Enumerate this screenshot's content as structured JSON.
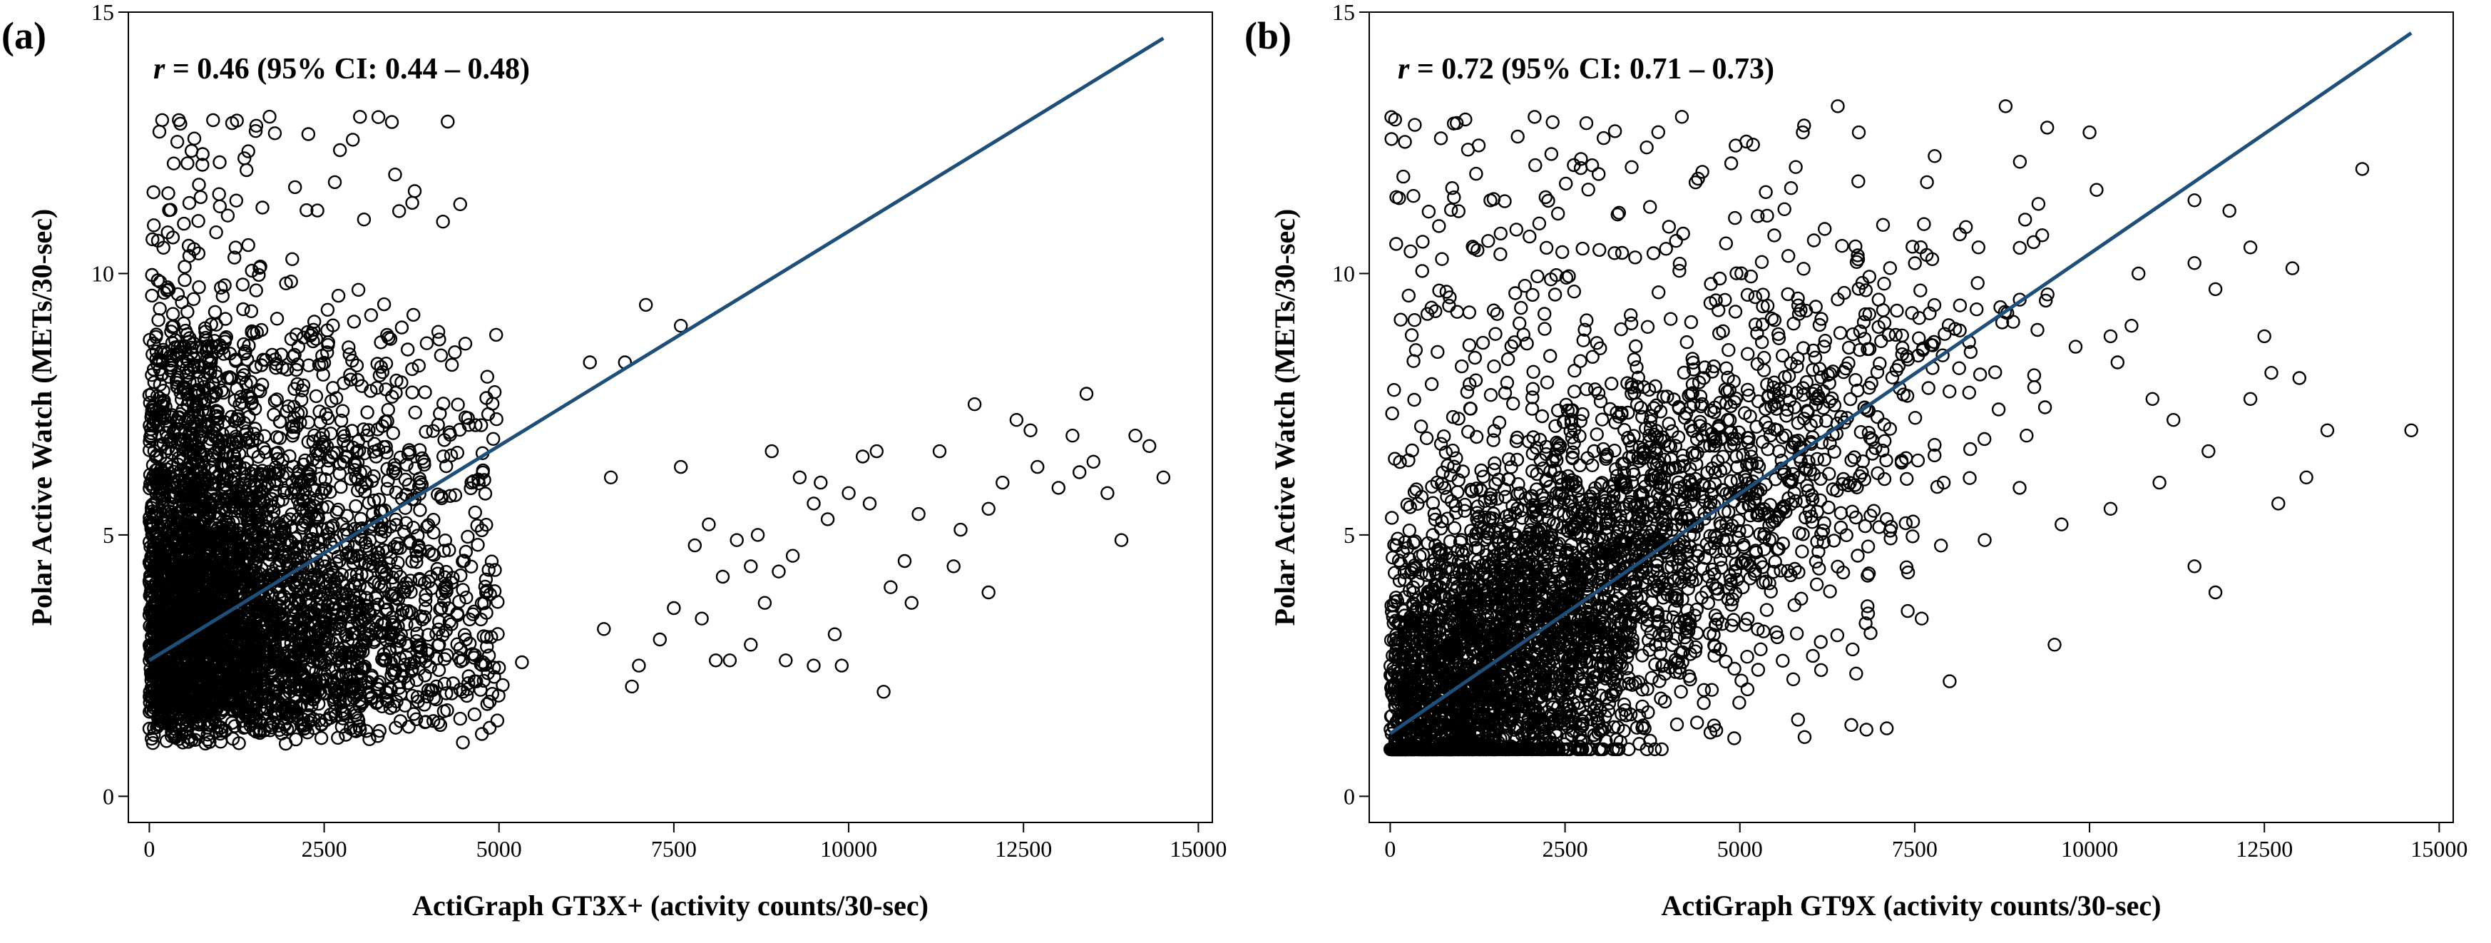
{
  "chart_data": [
    {
      "type": "scatter",
      "panel_label": "(a)",
      "annotation": {
        "r_symbol": "r",
        "text": " = 0.46 (95% CI: 0.44 – 0.48)"
      },
      "xlabel": "ActiGraph GT3X+ (activity counts/30-sec)",
      "ylabel": "Polar Active Watch (METs/30-sec)",
      "xlim": [
        -300,
        15200
      ],
      "ylim": [
        -0.5,
        15
      ],
      "xticks": [
        0,
        2500,
        5000,
        7500,
        10000,
        12500,
        15000
      ],
      "yticks": [
        0,
        5,
        10,
        15
      ],
      "fit_line": {
        "x": [
          0,
          14500
        ],
        "y": [
          2.6,
          14.5
        ]
      },
      "line_color": "#1f4e79",
      "outlier_points": [
        [
          14500,
          6.1
        ],
        [
          14300,
          6.7
        ],
        [
          14100,
          6.9
        ],
        [
          13900,
          4.9
        ],
        [
          13700,
          5.8
        ],
        [
          13500,
          6.4
        ],
        [
          13400,
          7.7
        ],
        [
          13200,
          6.9
        ],
        [
          13000,
          5.9
        ],
        [
          12700,
          6.3
        ],
        [
          12400,
          7.2
        ],
        [
          12000,
          5.5
        ],
        [
          12000,
          3.9
        ],
        [
          11800,
          7.5
        ],
        [
          11600,
          5.1
        ],
        [
          11300,
          6.6
        ],
        [
          11000,
          5.4
        ],
        [
          10800,
          4.5
        ],
        [
          10600,
          4.0
        ],
        [
          10400,
          6.6
        ],
        [
          10200,
          6.5
        ],
        [
          10000,
          5.8
        ],
        [
          9800,
          3.1
        ],
        [
          9600,
          6.0
        ],
        [
          9500,
          5.6
        ],
        [
          9300,
          6.1
        ],
        [
          9200,
          4.6
        ],
        [
          9000,
          4.3
        ],
        [
          8900,
          6.6
        ],
        [
          8700,
          5.0
        ],
        [
          8600,
          4.4
        ],
        [
          8400,
          4.9
        ],
        [
          8200,
          4.2
        ],
        [
          8000,
          5.2
        ],
        [
          7800,
          4.8
        ],
        [
          7600,
          6.3
        ],
        [
          7500,
          3.6
        ],
        [
          7300,
          3.0
        ],
        [
          7100,
          9.4
        ],
        [
          7000,
          2.5
        ],
        [
          6800,
          8.3
        ],
        [
          6600,
          6.1
        ],
        [
          6300,
          8.3
        ],
        [
          6500,
          3.2
        ],
        [
          8100,
          2.6
        ],
        [
          8300,
          2.6
        ],
        [
          8600,
          2.9
        ],
        [
          9100,
          2.6
        ],
        [
          9500,
          2.5
        ],
        [
          9900,
          2.5
        ],
        [
          10500,
          2.0
        ],
        [
          10900,
          3.7
        ],
        [
          11500,
          4.4
        ],
        [
          7600,
          9.0
        ],
        [
          6900,
          2.1
        ],
        [
          7900,
          3.4
        ],
        [
          8800,
          3.7
        ],
        [
          9700,
          5.3
        ],
        [
          10300,
          5.6
        ],
        [
          12200,
          6.0
        ],
        [
          12600,
          7.0
        ],
        [
          13300,
          6.2
        ]
      ]
    },
    {
      "type": "scatter",
      "panel_label": "(b)",
      "annotation": {
        "r_symbol": "r",
        "text": " = 0.72 (95% CI: 0.71 – 0.73)"
      },
      "xlabel": "ActiGraph GT9X (activity counts/30-sec)",
      "ylabel": "Polar Active Watch (METs/30-sec)",
      "xlim": [
        -300,
        15200
      ],
      "ylim": [
        -0.5,
        15
      ],
      "xticks": [
        0,
        2500,
        5000,
        7500,
        10000,
        12500,
        15000
      ],
      "yticks": [
        0,
        5,
        10,
        15
      ],
      "fit_line": {
        "x": [
          0,
          14600
        ],
        "y": [
          1.2,
          14.6
        ]
      },
      "line_color": "#1f4e79",
      "outlier_points": [
        [
          14600,
          7.0
        ],
        [
          13900,
          12.0
        ],
        [
          13400,
          7.0
        ],
        [
          13100,
          6.1
        ],
        [
          12900,
          10.1
        ],
        [
          12700,
          5.6
        ],
        [
          12600,
          8.1
        ],
        [
          12500,
          8.8
        ],
        [
          12300,
          10.5
        ],
        [
          12300,
          7.6
        ],
        [
          11800,
          9.7
        ],
        [
          11800,
          3.9
        ],
        [
          11700,
          6.6
        ],
        [
          11500,
          10.2
        ],
        [
          11500,
          4.4
        ],
        [
          11500,
          11.4
        ],
        [
          11200,
          7.2
        ],
        [
          10900,
          7.6
        ],
        [
          10700,
          10.0
        ],
        [
          10400,
          8.3
        ],
        [
          10300,
          5.5
        ],
        [
          10300,
          8.8
        ],
        [
          10100,
          11.6
        ],
        [
          10000,
          12.7
        ],
        [
          9800,
          8.6
        ],
        [
          9600,
          5.2
        ],
        [
          9500,
          2.9
        ],
        [
          9400,
          9.6
        ],
        [
          9200,
          10.6
        ],
        [
          9100,
          6.9
        ],
        [
          8800,
          13.2
        ],
        [
          8700,
          7.4
        ],
        [
          8500,
          4.9
        ],
        [
          8300,
          8.5
        ],
        [
          8000,
          2.2
        ],
        [
          7600,
          3.4
        ],
        [
          7100,
          1.3
        ],
        [
          6700,
          12.7
        ],
        [
          6400,
          13.2
        ],
        [
          5900,
          12.7
        ],
        [
          9000,
          5.9
        ],
        [
          10600,
          9.0
        ],
        [
          11000,
          6.0
        ],
        [
          12000,
          11.2
        ],
        [
          13000,
          8.0
        ]
      ]
    }
  ]
}
